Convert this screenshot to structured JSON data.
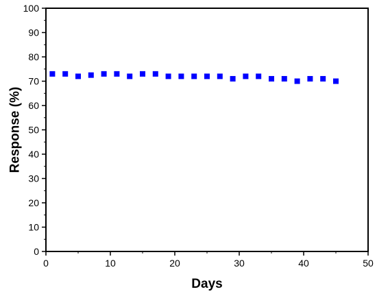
{
  "chart_data": {
    "type": "scatter",
    "title": "",
    "xlabel": "Days",
    "ylabel": "Response (%)",
    "xlim": [
      0,
      50
    ],
    "ylim": [
      0,
      100
    ],
    "x_ticks": [
      0,
      10,
      20,
      30,
      40,
      50
    ],
    "y_ticks": [
      0,
      10,
      20,
      30,
      40,
      50,
      60,
      70,
      80,
      90,
      100
    ],
    "grid": false,
    "legend": "none",
    "marker": "square",
    "marker_color": "#0000ff",
    "series": [
      {
        "x": [
          1,
          3,
          5,
          7,
          9,
          11,
          13,
          15,
          17,
          19,
          21,
          23,
          25,
          27,
          29,
          31,
          33,
          35,
          37,
          39,
          41,
          43,
          45
        ],
        "y": [
          73,
          73,
          72,
          72.5,
          73,
          73,
          72,
          73,
          73,
          72,
          72,
          72,
          72,
          72,
          71,
          72,
          72,
          71,
          71,
          70,
          71,
          71,
          70
        ]
      }
    ]
  }
}
